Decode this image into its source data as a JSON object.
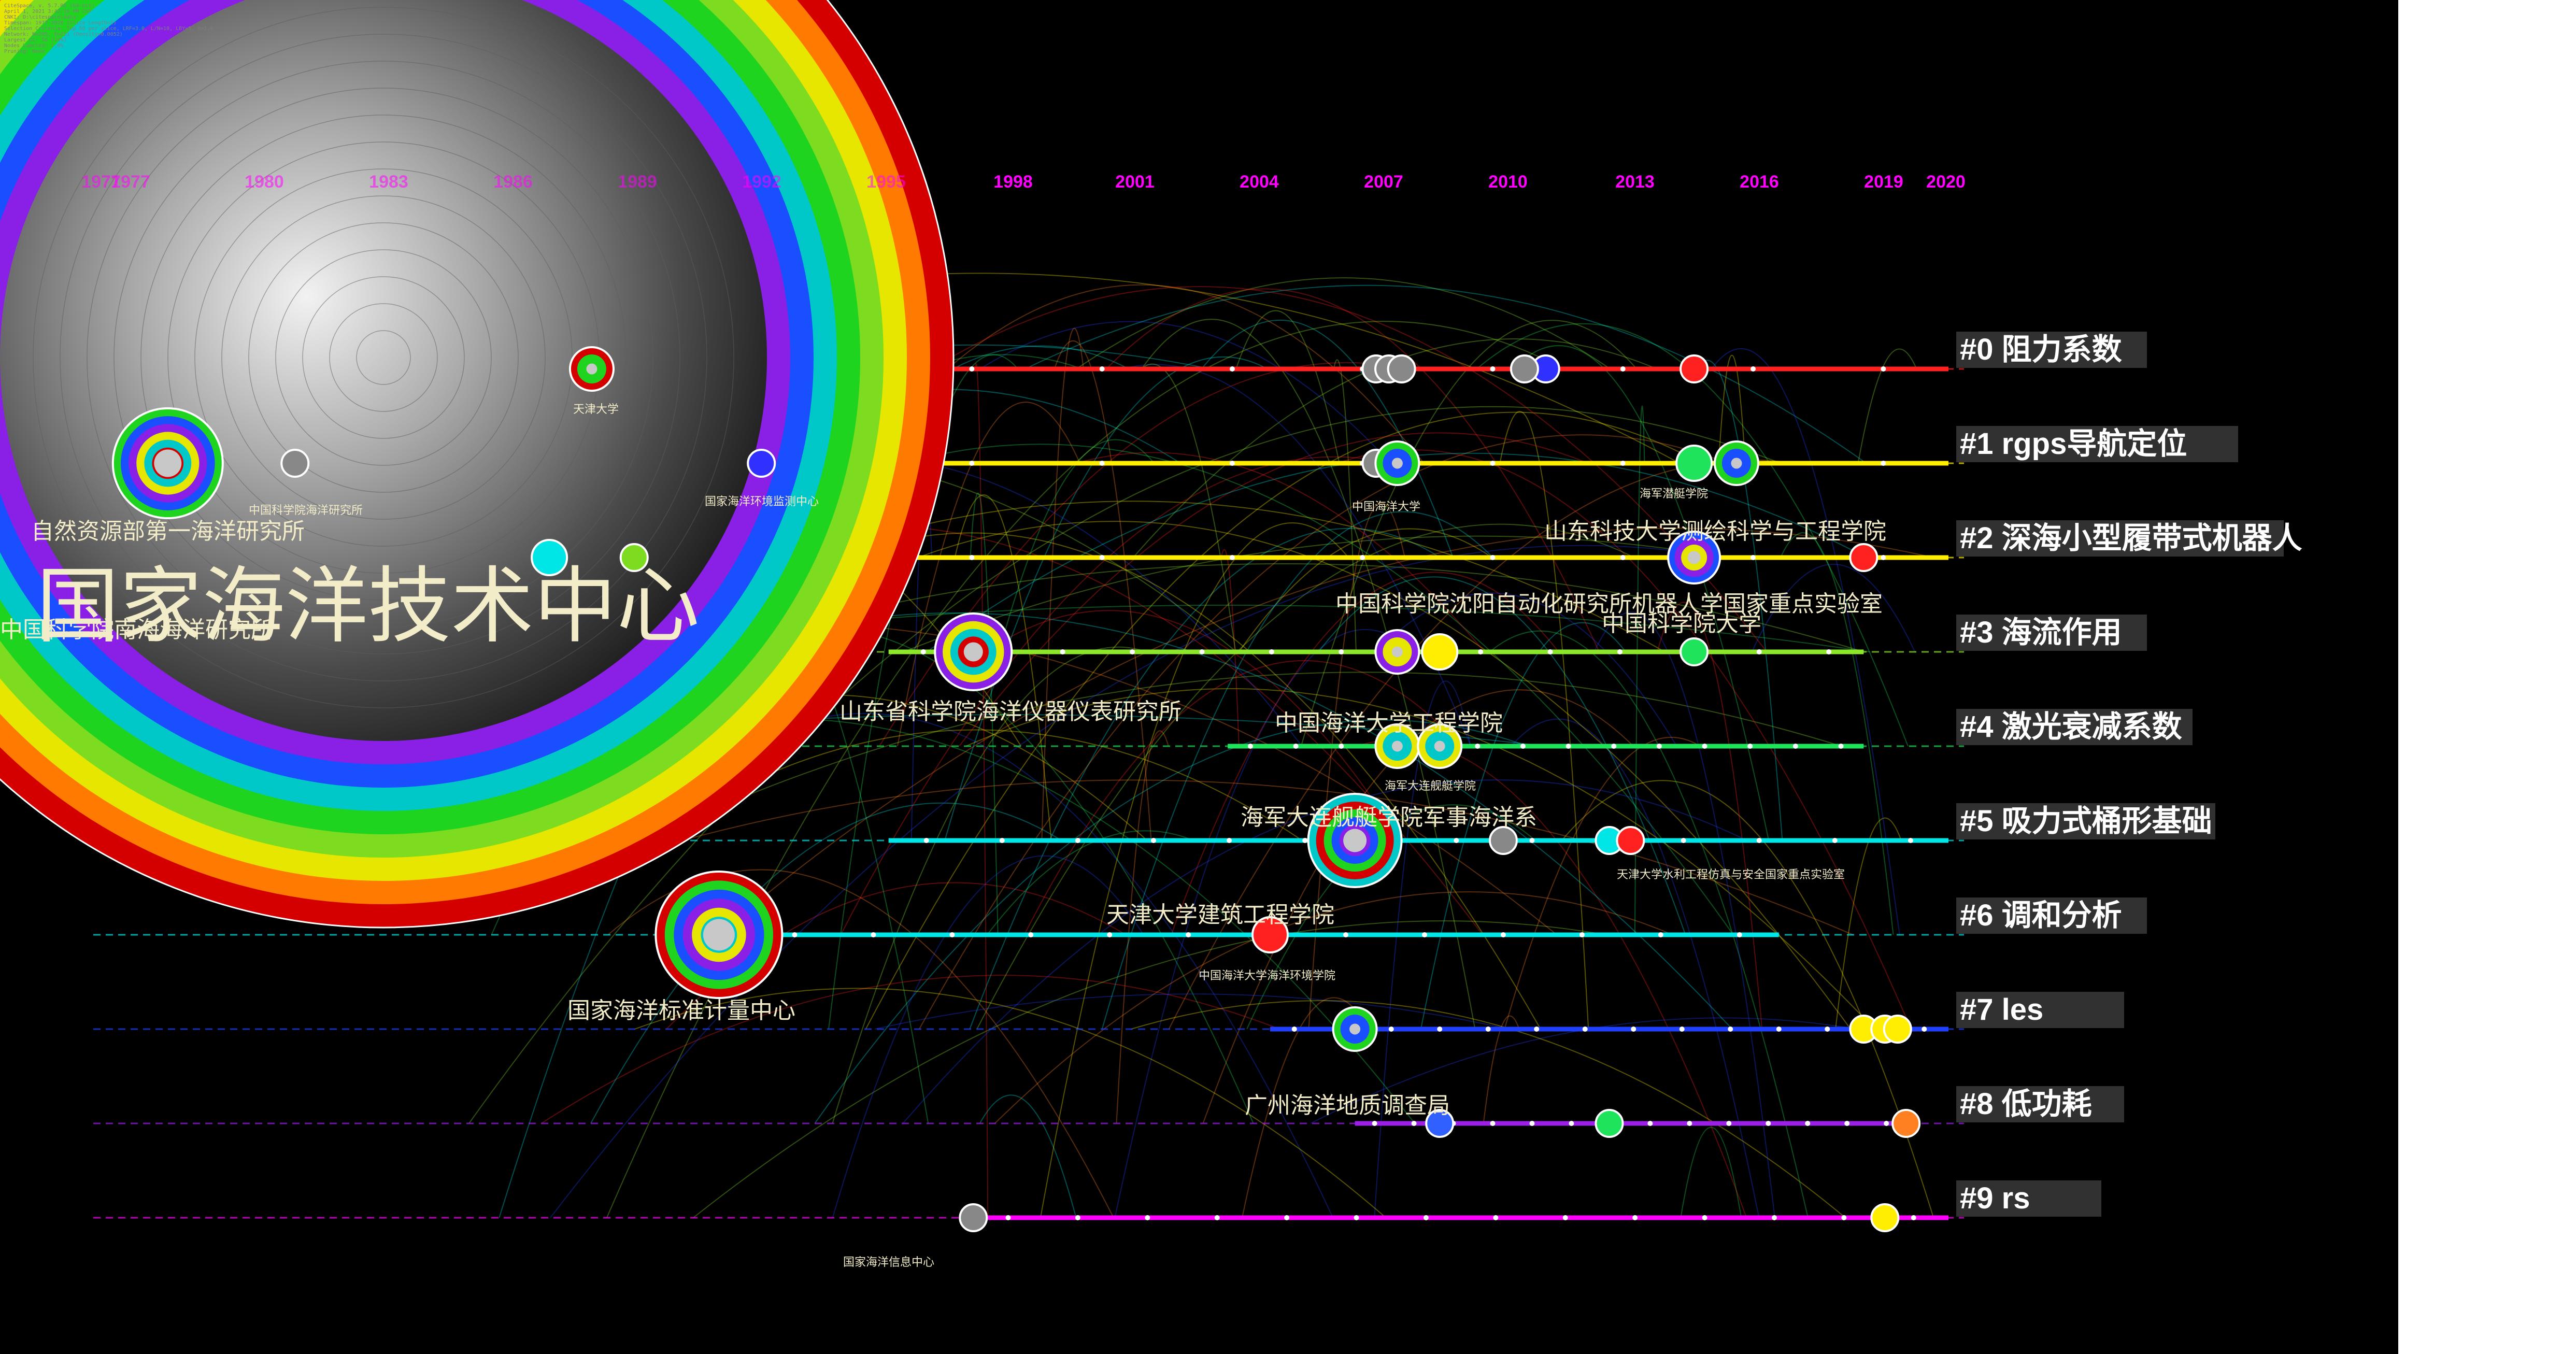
{
  "header_lines": [
    "CiteSpace, v. 5.7.R5 (64-bit)",
    "April 1, 2021 3:42:16 PM CST",
    "CNKI: D:\\citespace\\data",
    "Timespan: 1977-2020 (Slice Length=1)",
    "Selection Criteria: Top 50 per slice, LRF=3.0, L/N=10, LBY=5, e=1.0",
    "Network: N=285, E=211 (Density=0.0052)",
    "Largest CC: 56 (19%)",
    "Nodes Labeled: 1.0%",
    "Pruning: None"
  ],
  "colors": {
    "background": "#000000",
    "year_label": "#ff00ff",
    "label_text": "#f3ecc8",
    "cluster_box": "#3a3a3a"
  },
  "chart_data": {
    "type": "timeline",
    "x_axis": {
      "range": [
        1977,
        2020
      ],
      "ticks": [
        "1977",
        "1977",
        "1980",
        "1983",
        "1986",
        "1989",
        "1992",
        "1995",
        "1998",
        "2001",
        "2004",
        "2007",
        "2010",
        "2013",
        "2016",
        "2019",
        "2020"
      ]
    },
    "clusters": [
      {
        "id": "#0",
        "name": "阻力系数",
        "color": "#ff2020",
        "start": 1977,
        "end": 2020,
        "nodes": [
          {
            "year": 1988,
            "size": 2,
            "color": "#1fe35a"
          },
          {
            "year": 2006.5,
            "size": 1
          },
          {
            "year": 2006.8,
            "size": 1
          },
          {
            "year": 2007.1,
            "size": 1
          },
          {
            "year": 2010.5,
            "size": 1,
            "color": "#3030ff"
          },
          {
            "year": 2010.0,
            "size": 1
          },
          {
            "year": 2014,
            "size": 1,
            "color": "#ff2020"
          }
        ]
      },
      {
        "id": "#1",
        "name": "rgps导航定位",
        "color": "#ffee00",
        "start": 1977,
        "end": 2020,
        "nodes": [
          {
            "year": 1978,
            "size": 6
          },
          {
            "year": 1981,
            "size": 1
          },
          {
            "year": 1992,
            "size": 1,
            "color": "#3030ff"
          },
          {
            "year": 2006.5,
            "size": 1
          },
          {
            "year": 2007,
            "size": 2
          },
          {
            "year": 2014,
            "size": 1.5,
            "color": "#1fe35a"
          },
          {
            "year": 2015,
            "size": 2,
            "color": "#ffee00"
          }
        ]
      },
      {
        "id": "#2",
        "name": "深海小型履带式机器人",
        "color": "#ffee00",
        "start": 1977,
        "end": 2020,
        "nodes": [
          {
            "year": 1977,
            "size": 60
          },
          {
            "year": 1987,
            "size": 1.5,
            "color": "#00e5e5"
          },
          {
            "year": 1989,
            "size": 1,
            "color": "#7ddc1f"
          },
          {
            "year": 2014,
            "size": 2.5,
            "color": "#ffee00"
          },
          {
            "year": 2018,
            "size": 1,
            "color": "#ff2020"
          }
        ]
      },
      {
        "id": "#3",
        "name": "海流作用",
        "color": "#8ce62a",
        "start": 1995,
        "end": 2018,
        "nodes": [
          {
            "year": 1997,
            "size": 4
          },
          {
            "year": 2007,
            "size": 2
          },
          {
            "year": 2008,
            "size": 1.5,
            "color": "#ffee00"
          },
          {
            "year": 2014,
            "size": 1,
            "color": "#1fe35a"
          }
        ]
      },
      {
        "id": "#4",
        "name": "激光衰减系数",
        "color": "#1fe35a",
        "start": 2003,
        "end": 2018,
        "nodes": [
          {
            "year": 2007,
            "size": 2
          },
          {
            "year": 2008,
            "size": 2
          }
        ]
      },
      {
        "id": "#5",
        "name": "吸力式桶形基础",
        "color": "#00e5e5",
        "start": 1995,
        "end": 2020,
        "nodes": [
          {
            "year": 2006,
            "size": 5
          },
          {
            "year": 2009.5,
            "size": 1
          },
          {
            "year": 2012,
            "size": 1,
            "color": "#00e5e5"
          },
          {
            "year": 2012.5,
            "size": 1,
            "color": "#ff2020"
          }
        ]
      },
      {
        "id": "#6",
        "name": "调和分析",
        "color": "#00e5e5",
        "start": 1990,
        "end": 2016,
        "nodes": [
          {
            "year": 1991,
            "size": 7
          },
          {
            "year": 2004,
            "size": 1.5,
            "color": "#ff2020"
          }
        ]
      },
      {
        "id": "#7",
        "name": "les",
        "color": "#2040ff",
        "start": 2004,
        "end": 2020,
        "nodes": [
          {
            "year": 2006,
            "size": 2,
            "color": "#7a1fe6"
          },
          {
            "year": 2018,
            "size": 1,
            "color": "#ffee00"
          },
          {
            "year": 2018.5,
            "size": 1,
            "color": "#ffee00"
          },
          {
            "year": 2018.8,
            "size": 1,
            "color": "#ffee00"
          }
        ]
      },
      {
        "id": "#8",
        "name": "低功耗",
        "color": "#9b1fe6",
        "start": 2006,
        "end": 2019,
        "nodes": [
          {
            "year": 2008,
            "size": 1,
            "color": "#3060ff"
          },
          {
            "year": 2012,
            "size": 1,
            "color": "#1fe35a"
          },
          {
            "year": 2019,
            "size": 1,
            "color": "#ff8020"
          }
        ]
      },
      {
        "id": "#9",
        "name": "rs",
        "color": "#ff00ff",
        "start": 1997,
        "end": 2020,
        "nodes": [
          {
            "year": 1997,
            "size": 1
          },
          {
            "year": 2018.5,
            "size": 1,
            "color": "#ffee00"
          }
        ]
      }
    ],
    "labels": [
      "国家海洋技术中心",
      "自然资源部第一海洋研究所",
      "中国科学院南海海洋研究所",
      "中国科学院海洋研究所",
      "国家海洋环境监测中心",
      "天津大学",
      "中国海洋大学",
      "海军潜艇学院",
      "山东科技大学测绘科学与工程学院",
      "中国科学院沈阳自动化研究所机器人学国家重点实验室",
      "中国科学院大学",
      "山东省科学院海洋仪器仪表研究所",
      "中国海洋大学工程学院",
      "海军大连舰艇学院",
      "海军大连舰艇学院军事海洋系",
      "天津大学水利工程仿真与安全国家重点实验室",
      "天津大学建筑工程学院",
      "中国海洋大学海洋环境学院",
      "国家海洋标准计量中心",
      "广州海洋地质调查局",
      "国家海洋信息中心"
    ]
  }
}
